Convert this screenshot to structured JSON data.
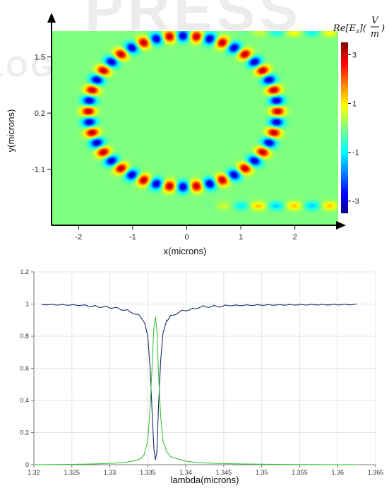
{
  "chart_data": [
    {
      "type": "heatmap",
      "xlabel": "x(microns)",
      "ylabel": "y(microns)",
      "xlim": [
        -2.5,
        2.8
      ],
      "ylim": [
        -2.4,
        2.1
      ],
      "x_ticks": [
        -2,
        -1,
        0,
        1,
        2
      ],
      "y_ticks": [
        1.5,
        0.2,
        -1.1
      ],
      "y_tick_labels": [
        "1.5",
        "0.2",
        "-1.1"
      ],
      "colorbar": {
        "label_prefix": "Re[E",
        "label_subscript": "z",
        "label_mid": "](",
        "label_numerator": "V",
        "label_denominator": "m",
        "label_suffix": ")",
        "ticks": [
          3,
          1,
          -1,
          -3
        ],
        "range": [
          -3.5,
          3.5
        ]
      },
      "field": {
        "ring_center": [
          -0.07,
          0.24
        ],
        "ring_radius": 1.75,
        "lobes": 44,
        "amplitude": 3.2,
        "waveguide_y": -1.95,
        "waveguide_x_start": 0.3
      }
    },
    {
      "type": "line",
      "xlabel": "lambda(microns)",
      "ylabel": "",
      "xlim": [
        1.32,
        1.365
      ],
      "ylim": [
        0,
        1.2
      ],
      "x_ticks": [
        1.32,
        1.325,
        1.33,
        1.335,
        1.34,
        1.345,
        1.35,
        1.355,
        1.36,
        1.365
      ],
      "x_tick_labels": [
        "1.32",
        "1.325",
        "1.33",
        "1.335",
        "1.34",
        "1.345",
        "1.35",
        "1.355",
        "1.36",
        "1.365"
      ],
      "y_ticks": [
        0,
        0.2,
        0.4,
        0.6,
        0.8,
        1,
        1.2
      ],
      "y_tick_labels": [
        "0",
        "0.2",
        "0.4",
        "0.6",
        "0.8",
        "1",
        "1.2"
      ],
      "grid": true,
      "series": [
        {
          "color": "#1a2a6c",
          "x": [
            1.321,
            1.324,
            1.327,
            1.329,
            1.3305,
            1.3315,
            1.332,
            1.333,
            1.334,
            1.3345,
            1.335,
            1.3353,
            1.3356,
            1.3358,
            1.336,
            1.3362,
            1.3364,
            1.3367,
            1.337,
            1.3375,
            1.338,
            1.339,
            1.34,
            1.341,
            1.3415,
            1.342,
            1.344,
            1.347,
            1.35,
            1.353,
            1.356,
            1.359,
            1.3625
          ],
          "y": [
            1.0,
            0.998,
            0.995,
            0.99,
            0.985,
            0.975,
            0.97,
            0.955,
            0.93,
            0.9,
            0.8,
            0.6,
            0.3,
            0.1,
            0.03,
            0.08,
            0.35,
            0.65,
            0.82,
            0.9,
            0.93,
            0.955,
            0.97,
            0.975,
            0.985,
            0.99,
            0.993,
            0.995,
            0.997,
            0.998,
            0.999,
            0.999,
            1.0
          ]
        },
        {
          "color": "#3cc43c",
          "x": [
            1.32,
            1.325,
            1.328,
            1.33,
            1.3315,
            1.3325,
            1.333,
            1.334,
            1.3345,
            1.335,
            1.3353,
            1.3356,
            1.3358,
            1.336,
            1.3362,
            1.3364,
            1.3367,
            1.337,
            1.3375,
            1.338,
            1.339,
            1.34,
            1.341,
            1.342,
            1.344,
            1.347,
            1.35,
            1.355,
            1.3625
          ],
          "y": [
            0.0,
            0.002,
            0.005,
            0.008,
            0.012,
            0.018,
            0.022,
            0.035,
            0.06,
            0.15,
            0.35,
            0.65,
            0.85,
            0.92,
            0.84,
            0.58,
            0.3,
            0.15,
            0.08,
            0.05,
            0.035,
            0.022,
            0.016,
            0.012,
            0.008,
            0.005,
            0.003,
            0.001,
            0.0
          ]
        }
      ]
    }
  ],
  "watermark": {
    "line1": "PRESS",
    "line2": "LOGY PUBLICATIONS"
  }
}
